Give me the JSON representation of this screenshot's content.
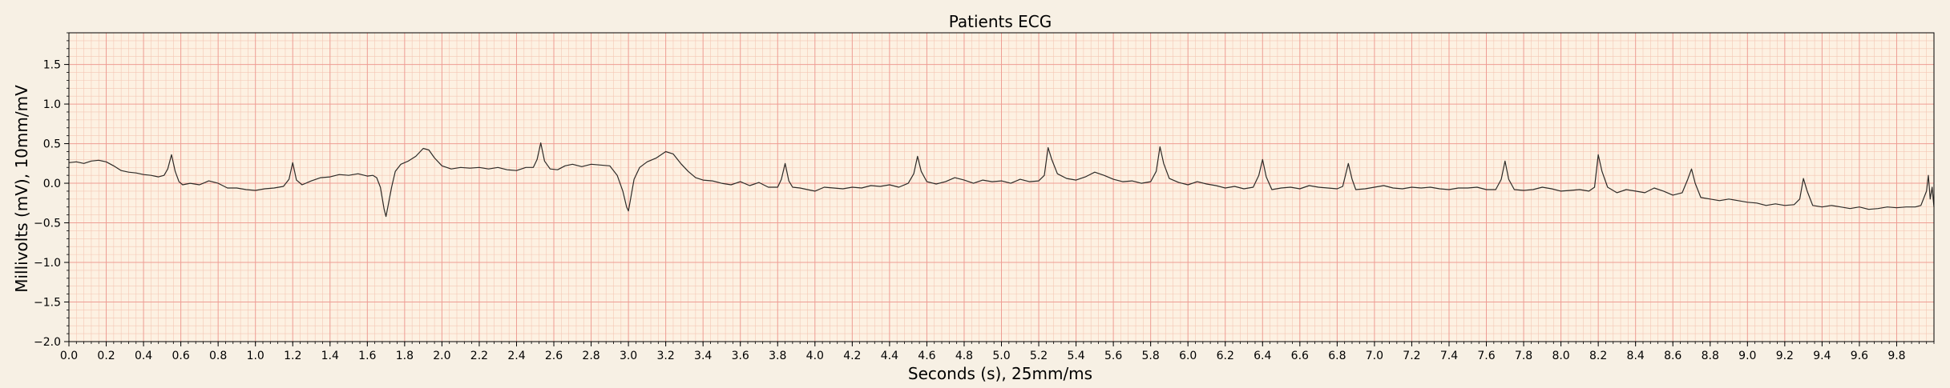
{
  "chart_data": {
    "type": "line",
    "title": "Patients ECG",
    "xlabel": "Seconds (s), 25mm/ms",
    "ylabel": "Millivolts (mV), 10mm/mV",
    "xlim": [
      0,
      10
    ],
    "ylim": [
      -2.0,
      1.9
    ],
    "x_ticks": [
      0.0,
      0.2,
      0.4,
      0.6,
      0.8,
      1.0,
      1.2,
      1.4,
      1.6,
      1.8,
      2.0,
      2.2,
      2.4,
      2.6,
      2.8,
      3.0,
      3.2,
      3.4,
      3.6,
      3.8,
      4.0,
      4.2,
      4.4,
      4.6,
      4.8,
      5.0,
      5.2,
      5.4,
      5.6,
      5.8,
      6.0,
      6.2,
      6.4,
      6.6,
      6.8,
      7.0,
      7.2,
      7.4,
      7.6,
      7.8,
      8.0,
      8.2,
      8.4,
      8.6,
      8.8,
      9.0,
      9.2,
      9.4,
      9.6,
      9.8
    ],
    "y_ticks": [
      -2.0,
      -1.5,
      -1.0,
      -0.5,
      0.0,
      0.5,
      1.0,
      1.5
    ],
    "grid": {
      "minor_step_x": 0.04,
      "major_step_x": 0.2,
      "minor_step_y": 0.1,
      "major_step_y": 0.5
    },
    "colors": {
      "background": "#f7f0e4",
      "plot_area": "#fdf1e2",
      "minor_grid": "#f4c6b4",
      "major_grid": "#ee9d94",
      "trace": "#2d2a27"
    },
    "series": [
      {
        "points": [
          [
            0.0,
            0.26
          ],
          [
            0.04,
            0.27
          ],
          [
            0.08,
            0.25
          ],
          [
            0.12,
            0.28
          ],
          [
            0.16,
            0.29
          ],
          [
            0.2,
            0.27
          ],
          [
            0.24,
            0.22
          ],
          [
            0.28,
            0.16
          ],
          [
            0.32,
            0.14
          ],
          [
            0.36,
            0.13
          ],
          [
            0.4,
            0.11
          ],
          [
            0.44,
            0.1
          ],
          [
            0.48,
            0.08
          ],
          [
            0.51,
            0.1
          ],
          [
            0.53,
            0.18
          ],
          [
            0.55,
            0.36
          ],
          [
            0.57,
            0.15
          ],
          [
            0.59,
            0.02
          ],
          [
            0.61,
            -0.02
          ],
          [
            0.65,
            0.0
          ],
          [
            0.7,
            -0.02
          ],
          [
            0.75,
            0.03
          ],
          [
            0.8,
            0.0
          ],
          [
            0.85,
            -0.06
          ],
          [
            0.9,
            -0.06
          ],
          [
            0.95,
            -0.08
          ],
          [
            1.0,
            -0.09
          ],
          [
            1.05,
            -0.07
          ],
          [
            1.1,
            -0.06
          ],
          [
            1.15,
            -0.04
          ],
          [
            1.18,
            0.05
          ],
          [
            1.2,
            0.26
          ],
          [
            1.22,
            0.04
          ],
          [
            1.25,
            -0.02
          ],
          [
            1.3,
            0.03
          ],
          [
            1.35,
            0.07
          ],
          [
            1.4,
            0.08
          ],
          [
            1.45,
            0.11
          ],
          [
            1.5,
            0.1
          ],
          [
            1.55,
            0.12
          ],
          [
            1.6,
            0.09
          ],
          [
            1.63,
            0.1
          ],
          [
            1.65,
            0.07
          ],
          [
            1.67,
            -0.05
          ],
          [
            1.69,
            -0.33
          ],
          [
            1.7,
            -0.42
          ],
          [
            1.71,
            -0.3
          ],
          [
            1.73,
            -0.05
          ],
          [
            1.75,
            0.15
          ],
          [
            1.78,
            0.24
          ],
          [
            1.82,
            0.28
          ],
          [
            1.86,
            0.34
          ],
          [
            1.9,
            0.44
          ],
          [
            1.93,
            0.42
          ],
          [
            1.96,
            0.32
          ],
          [
            2.0,
            0.22
          ],
          [
            2.05,
            0.18
          ],
          [
            2.1,
            0.2
          ],
          [
            2.15,
            0.19
          ],
          [
            2.2,
            0.2
          ],
          [
            2.25,
            0.18
          ],
          [
            2.3,
            0.2
          ],
          [
            2.35,
            0.17
          ],
          [
            2.4,
            0.16
          ],
          [
            2.45,
            0.2
          ],
          [
            2.49,
            0.2
          ],
          [
            2.51,
            0.3
          ],
          [
            2.53,
            0.51
          ],
          [
            2.55,
            0.28
          ],
          [
            2.58,
            0.18
          ],
          [
            2.62,
            0.17
          ],
          [
            2.66,
            0.22
          ],
          [
            2.7,
            0.24
          ],
          [
            2.75,
            0.21
          ],
          [
            2.8,
            0.24
          ],
          [
            2.85,
            0.23
          ],
          [
            2.9,
            0.22
          ],
          [
            2.94,
            0.1
          ],
          [
            2.97,
            -0.1
          ],
          [
            2.99,
            -0.3
          ],
          [
            3.0,
            -0.35
          ],
          [
            3.01,
            -0.22
          ],
          [
            3.03,
            0.05
          ],
          [
            3.06,
            0.2
          ],
          [
            3.1,
            0.27
          ],
          [
            3.15,
            0.32
          ],
          [
            3.2,
            0.4
          ],
          [
            3.24,
            0.37
          ],
          [
            3.28,
            0.25
          ],
          [
            3.32,
            0.15
          ],
          [
            3.36,
            0.07
          ],
          [
            3.4,
            0.04
          ],
          [
            3.45,
            0.03
          ],
          [
            3.5,
            0.0
          ],
          [
            3.55,
            -0.02
          ],
          [
            3.6,
            0.02
          ],
          [
            3.65,
            -0.03
          ],
          [
            3.7,
            0.01
          ],
          [
            3.75,
            -0.05
          ],
          [
            3.8,
            -0.05
          ],
          [
            3.82,
            0.05
          ],
          [
            3.84,
            0.25
          ],
          [
            3.86,
            0.03
          ],
          [
            3.88,
            -0.05
          ],
          [
            3.92,
            -0.06
          ],
          [
            3.96,
            -0.08
          ],
          [
            4.0,
            -0.1
          ],
          [
            4.05,
            -0.05
          ],
          [
            4.1,
            -0.06
          ],
          [
            4.15,
            -0.07
          ],
          [
            4.2,
            -0.05
          ],
          [
            4.25,
            -0.06
          ],
          [
            4.3,
            -0.03
          ],
          [
            4.35,
            -0.04
          ],
          [
            4.4,
            -0.02
          ],
          [
            4.45,
            -0.05
          ],
          [
            4.5,
            0.0
          ],
          [
            4.53,
            0.12
          ],
          [
            4.55,
            0.34
          ],
          [
            4.57,
            0.15
          ],
          [
            4.6,
            0.02
          ],
          [
            4.65,
            -0.01
          ],
          [
            4.7,
            0.02
          ],
          [
            4.75,
            0.07
          ],
          [
            4.8,
            0.04
          ],
          [
            4.85,
            0.0
          ],
          [
            4.9,
            0.04
          ],
          [
            4.95,
            0.02
          ],
          [
            5.0,
            0.03
          ],
          [
            5.05,
            0.0
          ],
          [
            5.1,
            0.05
          ],
          [
            5.15,
            0.02
          ],
          [
            5.2,
            0.03
          ],
          [
            5.23,
            0.1
          ],
          [
            5.25,
            0.45
          ],
          [
            5.27,
            0.3
          ],
          [
            5.3,
            0.12
          ],
          [
            5.35,
            0.06
          ],
          [
            5.4,
            0.04
          ],
          [
            5.45,
            0.08
          ],
          [
            5.5,
            0.14
          ],
          [
            5.55,
            0.1
          ],
          [
            5.6,
            0.05
          ],
          [
            5.65,
            0.02
          ],
          [
            5.7,
            0.03
          ],
          [
            5.75,
            0.0
          ],
          [
            5.8,
            0.02
          ],
          [
            5.83,
            0.15
          ],
          [
            5.85,
            0.46
          ],
          [
            5.87,
            0.25
          ],
          [
            5.9,
            0.06
          ],
          [
            5.95,
            0.01
          ],
          [
            6.0,
            -0.02
          ],
          [
            6.05,
            0.02
          ],
          [
            6.1,
            -0.01
          ],
          [
            6.15,
            -0.03
          ],
          [
            6.2,
            -0.06
          ],
          [
            6.25,
            -0.04
          ],
          [
            6.3,
            -0.07
          ],
          [
            6.35,
            -0.05
          ],
          [
            6.38,
            0.1
          ],
          [
            6.4,
            0.3
          ],
          [
            6.42,
            0.08
          ],
          [
            6.45,
            -0.08
          ],
          [
            6.5,
            -0.06
          ],
          [
            6.55,
            -0.05
          ],
          [
            6.6,
            -0.07
          ],
          [
            6.65,
            -0.03
          ],
          [
            6.7,
            -0.05
          ],
          [
            6.75,
            -0.06
          ],
          [
            6.8,
            -0.07
          ],
          [
            6.83,
            -0.04
          ],
          [
            6.86,
            0.25
          ],
          [
            6.88,
            0.05
          ],
          [
            6.9,
            -0.08
          ],
          [
            6.95,
            -0.07
          ],
          [
            7.0,
            -0.05
          ],
          [
            7.05,
            -0.03
          ],
          [
            7.1,
            -0.06
          ],
          [
            7.15,
            -0.07
          ],
          [
            7.2,
            -0.05
          ],
          [
            7.25,
            -0.06
          ],
          [
            7.3,
            -0.05
          ],
          [
            7.35,
            -0.07
          ],
          [
            7.4,
            -0.08
          ],
          [
            7.45,
            -0.06
          ],
          [
            7.5,
            -0.06
          ],
          [
            7.55,
            -0.05
          ],
          [
            7.6,
            -0.08
          ],
          [
            7.65,
            -0.08
          ],
          [
            7.68,
            0.05
          ],
          [
            7.7,
            0.28
          ],
          [
            7.72,
            0.05
          ],
          [
            7.75,
            -0.08
          ],
          [
            7.8,
            -0.09
          ],
          [
            7.85,
            -0.08
          ],
          [
            7.9,
            -0.05
          ],
          [
            7.95,
            -0.07
          ],
          [
            8.0,
            -0.1
          ],
          [
            8.05,
            -0.09
          ],
          [
            8.1,
            -0.08
          ],
          [
            8.15,
            -0.1
          ],
          [
            8.18,
            -0.05
          ],
          [
            8.2,
            0.36
          ],
          [
            8.22,
            0.15
          ],
          [
            8.25,
            -0.05
          ],
          [
            8.3,
            -0.12
          ],
          [
            8.35,
            -0.08
          ],
          [
            8.4,
            -0.1
          ],
          [
            8.45,
            -0.12
          ],
          [
            8.5,
            -0.06
          ],
          [
            8.55,
            -0.1
          ],
          [
            8.6,
            -0.15
          ],
          [
            8.65,
            -0.12
          ],
          [
            8.68,
            0.05
          ],
          [
            8.7,
            0.18
          ],
          [
            8.72,
            0.0
          ],
          [
            8.75,
            -0.18
          ],
          [
            8.8,
            -0.2
          ],
          [
            8.85,
            -0.22
          ],
          [
            8.9,
            -0.2
          ],
          [
            8.95,
            -0.22
          ],
          [
            9.0,
            -0.24
          ],
          [
            9.05,
            -0.25
          ],
          [
            9.1,
            -0.28
          ],
          [
            9.15,
            -0.26
          ],
          [
            9.2,
            -0.28
          ],
          [
            9.25,
            -0.27
          ],
          [
            9.28,
            -0.2
          ],
          [
            9.3,
            0.06
          ],
          [
            9.32,
            -0.1
          ],
          [
            9.35,
            -0.28
          ],
          [
            9.4,
            -0.3
          ],
          [
            9.45,
            -0.28
          ],
          [
            9.5,
            -0.3
          ],
          [
            9.55,
            -0.32
          ],
          [
            9.6,
            -0.3
          ],
          [
            9.65,
            -0.33
          ],
          [
            9.7,
            -0.32
          ],
          [
            9.75,
            -0.3
          ],
          [
            9.8,
            -0.31
          ],
          [
            9.85,
            -0.3
          ],
          [
            9.9,
            -0.3
          ],
          [
            9.93,
            -0.28
          ],
          [
            9.96,
            -0.1
          ],
          [
            9.97,
            0.1
          ],
          [
            9.98,
            -0.2
          ],
          [
            9.99,
            -0.05
          ],
          [
            10.0,
            -0.3
          ]
        ]
      }
    ]
  }
}
